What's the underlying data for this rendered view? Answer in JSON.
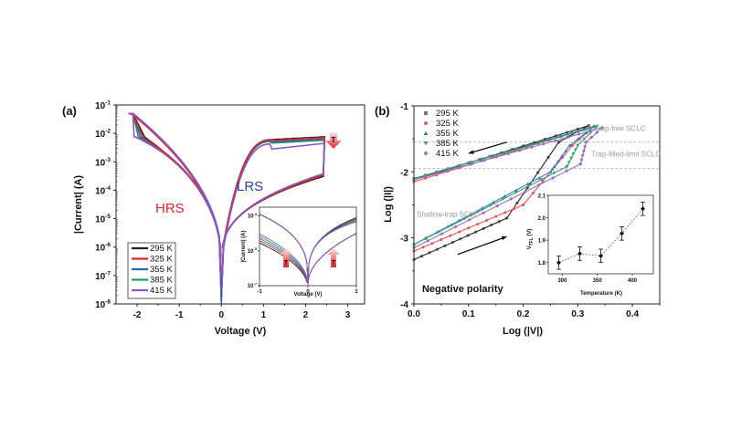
{
  "chart_data": [
    {
      "panel": "(a)",
      "type": "line",
      "title": "",
      "xlabel": "Voltage (V)",
      "ylabel": "|Current| (A)",
      "xlim": [
        -2.5,
        3.4
      ],
      "ylim_log10": [
        -8,
        -1
      ],
      "xticks": [
        "-2",
        "-1",
        "0",
        "1",
        "2",
        "3"
      ],
      "xtick_values": [
        -2,
        -1,
        0,
        1,
        2,
        3
      ],
      "yticks": [
        "10-1",
        "10-2",
        "10-3",
        "10-4",
        "10-5",
        "10-6",
        "10-7",
        "10-8"
      ],
      "ytick_exponents": [
        -1,
        -2,
        -3,
        -4,
        -5,
        -6,
        -7,
        -8
      ],
      "annotations": [
        {
          "text": "LRS",
          "color": "#2c3f9a",
          "x": 1.0,
          "y_log": -2.8
        },
        {
          "text": "HRS",
          "color": "#e0262b",
          "x": -1.4,
          "y_log": -4.3
        },
        {
          "text": "T",
          "note": "red down arrow, current decreases with T",
          "x": 2.75,
          "y_log": -2.1
        }
      ],
      "legend": {
        "placement": "bottom-left",
        "entries": [
          "295 K",
          "325 K",
          "355 K",
          "385 K",
          "415 K"
        ]
      },
      "series": [
        {
          "name": "295 K",
          "color": "#222222",
          "lrs_sat_log": -2.12,
          "hrs_scale": 0.0,
          "set_v": -1.85
        },
        {
          "name": "325 K",
          "color": "#e0262b",
          "lrs_sat_log": -2.15,
          "hrs_scale": 0.12,
          "set_v": -1.9
        },
        {
          "name": "355 K",
          "color": "#2a64b8",
          "lrs_sat_log": -2.2,
          "hrs_scale": 0.22,
          "set_v": -1.95
        },
        {
          "name": "385 K",
          "color": "#1f9a55",
          "lrs_sat_log": -2.24,
          "hrs_scale": 0.28,
          "set_v": -2.0
        },
        {
          "name": "415 K",
          "color": "#8b57c6",
          "lrs_sat_log": -2.35,
          "hrs_scale": 0.32,
          "set_v": -2.08
        }
      ],
      "inset": {
        "xlabel": "Voltage (V)",
        "ylabel": "|Current| (A)",
        "xlim": [
          -1,
          1
        ],
        "ylim_log10": [
          -7,
          -2.5
        ],
        "xticks": [
          "-1",
          "0",
          "1"
        ],
        "xtick_values": [
          -1,
          0,
          1
        ],
        "yticks": [
          "10-3",
          "10-5",
          "10-7"
        ],
        "ytick_exponents": [
          -3,
          -5,
          -7
        ],
        "annotations": [
          {
            "text": "T",
            "note": "red up arrow (HRS branch, left)"
          },
          {
            "text": "T",
            "note": "red up arrow (HRS branch, right)"
          }
        ]
      }
    },
    {
      "panel": "(b)",
      "type": "scatter",
      "title": "",
      "xlabel": "Log (|V|)",
      "ylabel": "Log (|I|)",
      "xlim": [
        0.0,
        0.45
      ],
      "ylim": [
        -4,
        -1
      ],
      "xticks": [
        "0.0",
        "0.1",
        "0.2",
        "0.3",
        "0.4"
      ],
      "xtick_values": [
        0.0,
        0.1,
        0.2,
        0.3,
        0.4
      ],
      "yticks": [
        "-1",
        "-2",
        "-3",
        "-4"
      ],
      "ytick_values": [
        -1,
        -2,
        -3,
        -4
      ],
      "grid": false,
      "reference_lines": [
        {
          "y": -1.55,
          "style": "dashed",
          "color": "#aaaaaa"
        },
        {
          "y": -1.95,
          "style": "dashed",
          "color": "#aaaaaa"
        }
      ],
      "annotations": [
        {
          "text": "Trap-free SCLC",
          "x": 0.33,
          "y": -1.38
        },
        {
          "text": "Trap-filled-limit SCLC",
          "x": 0.325,
          "y": -1.77
        },
        {
          "text": "Shallow-trap SCLC",
          "x": 0.005,
          "y": -2.68
        },
        {
          "text": "Negative polarity",
          "x": 0.01,
          "y": -3.82
        }
      ],
      "arrows": [
        {
          "direction": "left",
          "from": [
            0.17,
            -1.55
          ],
          "to": [
            0.1,
            -1.72
          ]
        },
        {
          "direction": "right",
          "from": [
            0.08,
            -3.25
          ],
          "to": [
            0.17,
            -2.98
          ]
        }
      ],
      "legend": {
        "placement": "top-left",
        "entries": [
          "295 K",
          "325 K",
          "355 K",
          "385 K",
          "415 K"
        ],
        "markers": [
          "square",
          "circle",
          "triangle-up",
          "triangle-down",
          "diamond"
        ]
      },
      "series": [
        {
          "name": "295 K",
          "color": "#777777",
          "marker": "square",
          "hrs_start": [
            0.0,
            -3.33
          ],
          "hrs_knee": [
            0.17,
            -2.7
          ],
          "tfl": [
            0.265,
            -1.55
          ],
          "top": [
            0.32,
            -1.3
          ],
          "lrs_end": [
            0.0,
            -2.12
          ]
        },
        {
          "name": "325 K",
          "color": "#e8555a",
          "marker": "circle",
          "hrs_start": [
            0.0,
            -3.2
          ],
          "hrs_knee": [
            0.2,
            -2.5
          ],
          "tfl": [
            0.29,
            -1.6
          ],
          "top": [
            0.33,
            -1.31
          ],
          "lrs_end": [
            0.0,
            -2.15
          ]
        },
        {
          "name": "355 K",
          "color": "#3a78d0",
          "marker": "triangle-up",
          "hrs_start": [
            0.0,
            -3.1
          ],
          "hrs_knee": [
            0.25,
            -2.0
          ],
          "tfl": [
            0.285,
            -1.6
          ],
          "top": [
            0.33,
            -1.31
          ],
          "lrs_end": [
            0.0,
            -2.1
          ]
        },
        {
          "name": "385 K",
          "color": "#2ea463",
          "marker": "triangle-down",
          "hrs_start": [
            0.0,
            -3.1
          ],
          "hrs_knee": [
            0.28,
            -1.92
          ],
          "tfl": [
            0.3,
            -1.6
          ],
          "top": [
            0.335,
            -1.31
          ],
          "lrs_end": [
            0.0,
            -2.1
          ]
        },
        {
          "name": "415 K",
          "color": "#a06ad0",
          "marker": "diamond",
          "hrs_start": [
            0.0,
            -3.15
          ],
          "hrs_knee": [
            0.305,
            -1.88
          ],
          "tfl": [
            0.315,
            -1.55
          ],
          "top": [
            0.345,
            -1.33
          ],
          "lrs_end": [
            0.0,
            -2.12
          ]
        }
      ],
      "inset": {
        "type": "scatter",
        "xlabel": "Temperature (K)",
        "ylabel": "V_TFL (V)",
        "ylabel_main": "V",
        "ylabel_sub": "TFL",
        "ylabel_unit": " (V)",
        "xlim": [
          280,
          430
        ],
        "ylim": [
          1.75,
          2.1
        ],
        "xticks": [
          "300",
          "350",
          "400"
        ],
        "xtick_values": [
          300,
          350,
          400
        ],
        "yticks": [
          "1.8",
          "1.9",
          "2.0",
          "2.1"
        ],
        "ytick_values": [
          1.8,
          1.9,
          2.0,
          2.1
        ],
        "x": [
          295,
          325,
          355,
          385,
          415
        ],
        "y": [
          1.8,
          1.84,
          1.83,
          1.93,
          2.04
        ],
        "yerr": [
          0.03,
          0.03,
          0.03,
          0.03,
          0.03
        ],
        "line_style": "dotted"
      }
    }
  ]
}
